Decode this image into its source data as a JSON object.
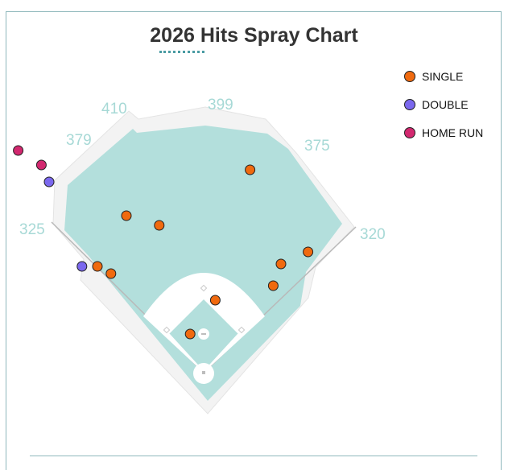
{
  "title": {
    "year": "2026",
    "text": "Hits Spray Chart"
  },
  "colors": {
    "outfield": "#b3dfdc",
    "dirt": "#b3dfdc",
    "wall": "#f3f3f3",
    "distance_label": "#a7d9d6",
    "single": "#f06a0f",
    "double": "#7b68ee",
    "home_run": "#d2286f"
  },
  "legend": [
    {
      "label": "SINGLE",
      "color": "#f06a0f"
    },
    {
      "label": "DOUBLE",
      "color": "#7b68ee"
    },
    {
      "label": "HOME RUN",
      "color": "#d2286f"
    }
  ],
  "distances": {
    "lf": "325",
    "lcf": "379",
    "cf_left": "410",
    "cf": "399",
    "rcf": "375",
    "rf": "320"
  },
  "chart_data": {
    "type": "scatter",
    "title": "2026 Hits Spray Chart",
    "field_distances_ft": {
      "left_field_line": 325,
      "left_center": 379,
      "deep_left_center": 410,
      "center": 399,
      "right_center": 375,
      "right_field_line": 320
    },
    "hits": [
      {
        "type": "SINGLE",
        "x": -0.07,
        "y": 0.16
      },
      {
        "type": "SINGLE",
        "x": 0.06,
        "y": 0.3
      },
      {
        "type": "SINGLE",
        "x": -0.48,
        "y": 0.41
      },
      {
        "type": "SINGLE",
        "x": -0.55,
        "y": 0.44
      },
      {
        "type": "SINGLE",
        "x": -0.4,
        "y": 0.65
      },
      {
        "type": "SINGLE",
        "x": -0.23,
        "y": 0.61
      },
      {
        "type": "SINGLE",
        "x": 0.36,
        "y": 0.36
      },
      {
        "type": "SINGLE",
        "x": 0.4,
        "y": 0.45
      },
      {
        "type": "SINGLE",
        "x": 0.54,
        "y": 0.5
      },
      {
        "type": "SINGLE",
        "x": 0.24,
        "y": 0.84
      },
      {
        "type": "DOUBLE",
        "x": -0.63,
        "y": 0.44
      },
      {
        "type": "DOUBLE",
        "x": -0.8,
        "y": 0.79
      },
      {
        "type": "HOME_RUN",
        "x": -0.84,
        "y": 0.86
      },
      {
        "type": "HOME_RUN",
        "x": -0.96,
        "y": 0.92
      }
    ]
  }
}
